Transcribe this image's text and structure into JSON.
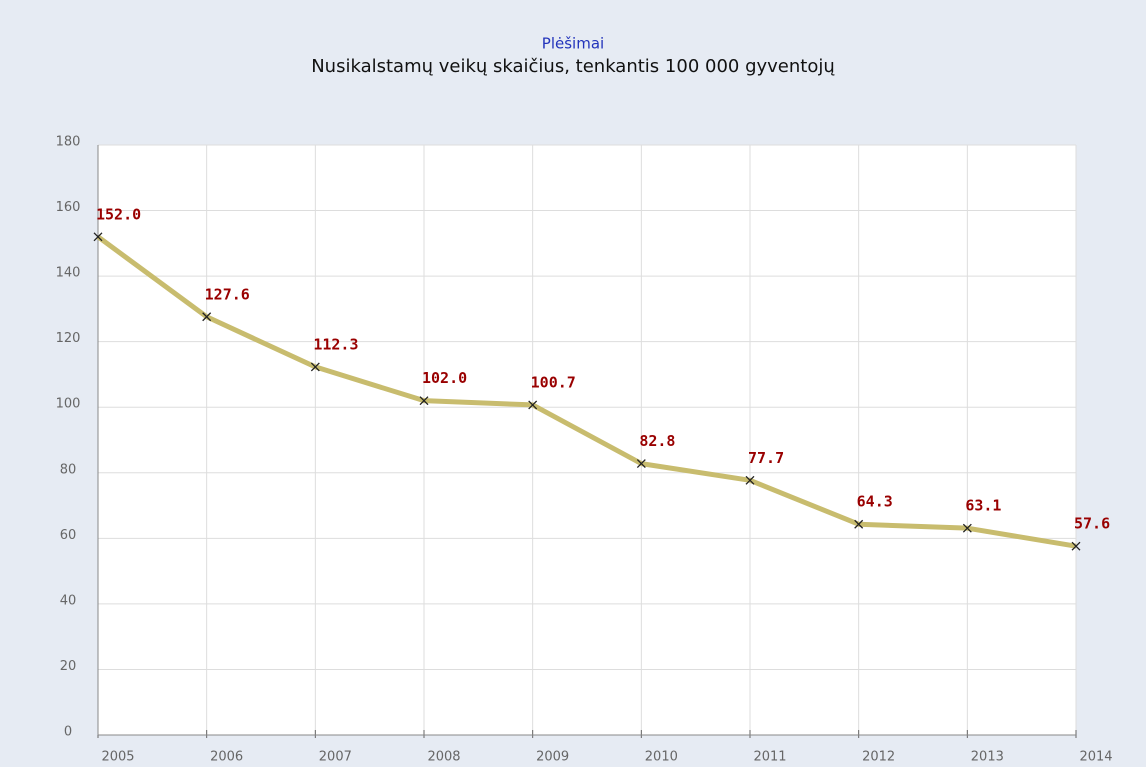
{
  "chart_data": {
    "type": "line",
    "title": "Plėšimai",
    "subtitle": "Nusikalstamų veikų skaičius, tenkantis 100 000 gyventojų",
    "categories": [
      "2005",
      "2006",
      "2007",
      "2008",
      "2009",
      "2010",
      "2011",
      "2012",
      "2013",
      "2014"
    ],
    "values": [
      152.0,
      127.6,
      112.3,
      102.0,
      100.7,
      82.8,
      77.7,
      64.3,
      63.1,
      57.6
    ],
    "value_labels": [
      "152.0",
      "127.6",
      "112.3",
      "102.0",
      "100.7",
      "82.8",
      "77.7",
      "64.3",
      "63.1",
      "57.6"
    ],
    "color": "#c8bc6e",
    "marker_color": "#222222",
    "label_color": "#990000",
    "ylim": [
      0,
      180
    ],
    "yticks": [
      0,
      20,
      40,
      60,
      80,
      100,
      120,
      140,
      160,
      180
    ],
    "grid": true
  }
}
